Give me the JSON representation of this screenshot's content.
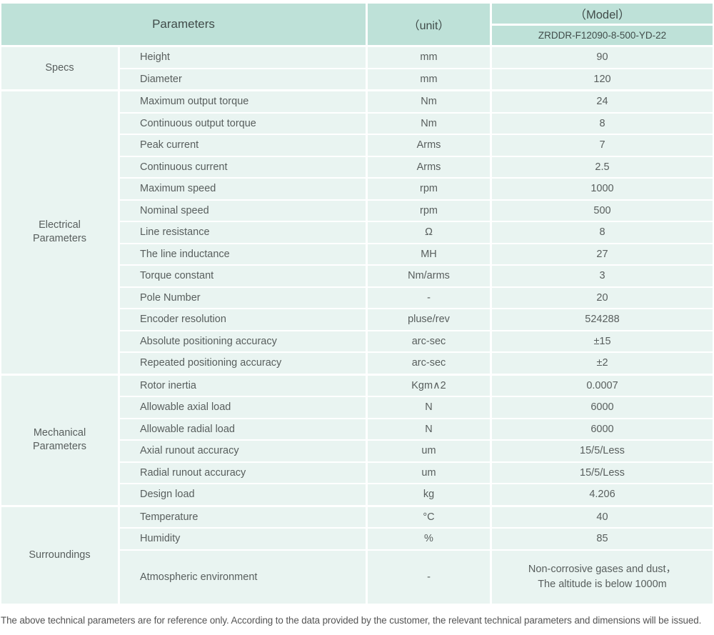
{
  "header": {
    "parameters_label": "Parameters",
    "unit_label": "（unit）",
    "model_label": "（Model）",
    "model_value": "ZRDDR-F12090-8-500-YD-22"
  },
  "groups": [
    {
      "label": "Specs",
      "rows": [
        {
          "name": "Height",
          "unit": "mm",
          "value": "90"
        },
        {
          "name": "Diameter",
          "unit": "mm",
          "value": "120"
        }
      ]
    },
    {
      "label": "Electrical Parameters",
      "rows": [
        {
          "name": "Maximum output torque",
          "unit": "Nm",
          "value": "24"
        },
        {
          "name": "Continuous output torque",
          "unit": "Nm",
          "value": "8"
        },
        {
          "name": "Peak current",
          "unit": "Arms",
          "value": "7"
        },
        {
          "name": "Continuous current",
          "unit": "Arms",
          "value": "2.5"
        },
        {
          "name": "Maximum speed",
          "unit": "rpm",
          "value": "1000"
        },
        {
          "name": "Nominal speed",
          "unit": "rpm",
          "value": "500"
        },
        {
          "name": "Line resistance",
          "unit": "Ω",
          "value": "8"
        },
        {
          "name": "The line inductance",
          "unit": "MH",
          "value": "27"
        },
        {
          "name": "Torque constant",
          "unit": "Nm/arms",
          "value": "3"
        },
        {
          "name": "Pole Number",
          "unit": "-",
          "value": "20"
        },
        {
          "name": "Encoder resolution",
          "unit": "pluse/rev",
          "value": "524288"
        },
        {
          "name": "Absolute positioning accuracy",
          "unit": "arc-sec",
          "value": "±15"
        },
        {
          "name": "Repeated positioning accuracy",
          "unit": "arc-sec",
          "value": "±2"
        }
      ]
    },
    {
      "label": "Mechanical Parameters",
      "rows": [
        {
          "name": "Rotor inertia",
          "unit": "Kgm∧2",
          "value": "0.0007"
        },
        {
          "name": "Allowable axial load",
          "unit": "N",
          "value": "6000"
        },
        {
          "name": "Allowable radial load",
          "unit": "N",
          "value": "6000"
        },
        {
          "name": "Axial runout accuracy",
          "unit": "um",
          "value": "15/5/Less"
        },
        {
          "name": "Radial runout accuracy",
          "unit": "um",
          "value": "15/5/Less"
        },
        {
          "name": "Design load",
          "unit": "kg",
          "value": "4.206"
        }
      ]
    },
    {
      "label": "Surroundings",
      "rows": [
        {
          "name": "Temperature",
          "unit": "°C",
          "value": "40"
        },
        {
          "name": "Humidity",
          "unit": "%",
          "value": "85"
        },
        {
          "name": "Atmospheric environment",
          "unit": "-",
          "value": "Non-corrosive gases and dust，\nThe altitude is below 1000m"
        }
      ]
    }
  ],
  "footnote": "The above technical parameters are for reference only. According to the data provided by the customer, the relevant technical parameters and dimensions will be issued.",
  "colors": {
    "header_bg": "#bee1d8",
    "cell_bg": "#e9f4f1",
    "header_text": "#414c4a",
    "body_text": "#585e5d"
  }
}
